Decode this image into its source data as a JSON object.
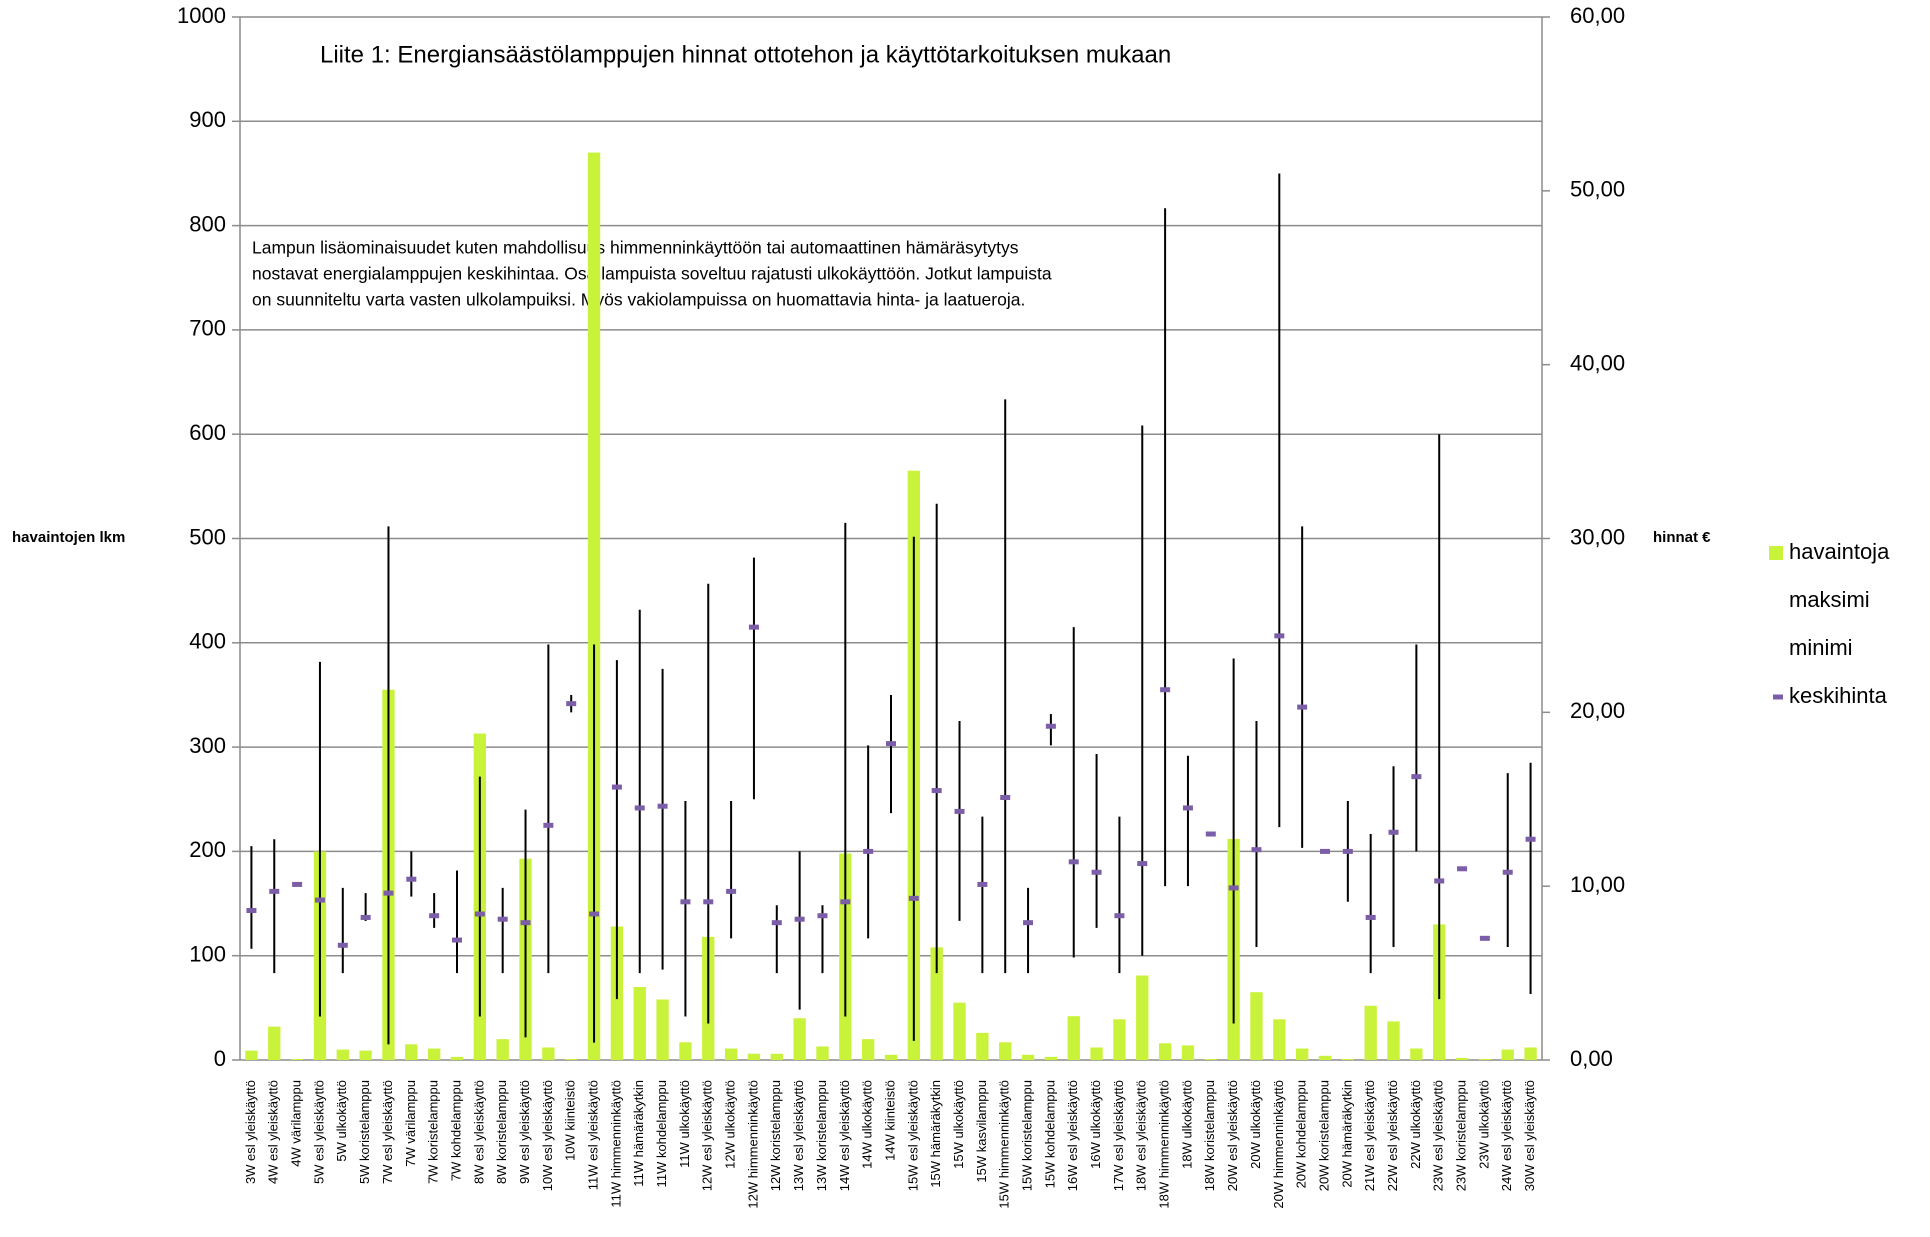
{
  "chart_data": {
    "type": "bar",
    "title": "Liite 1: Energiansäästölamppujen hinnat ottotehon ja käyttötarkoituksen mukaan",
    "annotation": [
      "Lampun lisäominaisuudet kuten mahdollisuus himmenninkäyttöön tai automaattinen hämäräsytytys",
      "nostavat energialamppujen keskihintaa. Osa lampuista soveltuu rajatusti ulkokäyttöön. Jotkut lampuista",
      "on suunniteltu varta vasten ulkolampuiksi. Myös vakiolampuissa on huomattavia hinta- ja laatueroja."
    ],
    "ylabel": "havaintojen lkm",
    "y2label": "hinnat €",
    "categories": [
      "3W esl yleiskäyttö",
      "4W esl yleiskäyttö",
      "4W värilamppu",
      "5W esl yleiskäyttö",
      "5W ulkokäyttö",
      "5W koristelamppu",
      "7W esl yleiskäyttö",
      "7W värilamppu",
      "7W koristelamppu",
      "7W kohdelamppu",
      "8W esl yleiskäyttö",
      "8W koristelamppu",
      "9W esl yleiskäyttö",
      "10W esl yleiskäyttö",
      "10W kiinteistö",
      "11W esl yleiskäyttö",
      "11W himmenninkäyttö",
      "11W hämäräkytkin",
      "11W kohdelamppu",
      "11W ulkokäyttö",
      "12W esl yleiskäyttö",
      "12W ulkokäyttö",
      "12W himmenninkäyttö",
      "12W koristelamppu",
      "13W esl yleiskäyttö",
      "13W koristelamppu",
      "14W esl yleiskäyttö",
      "14W ulkokäyttö",
      "14W kiinteistö",
      "15W esl yleiskäyttö",
      "15W hämäräkytkin",
      "15W ulkokäyttö",
      "15W kasvilamppu",
      "15W himmenninkäyttö",
      "15W koristelamppu",
      "15W kohdelamppu",
      "16W esl yleiskäyttö",
      "16W ulkokäyttö",
      "17W esl yleiskäyttö",
      "18W esl yleiskäyttö",
      "18W himmenninkäyttö",
      "18W ulkokäyttö",
      "18W koristelamppu",
      "20W esl yleiskäyttö",
      "20W ulkokäyttö",
      "20W himmenninkäyttö",
      "20W kohdelamppu",
      "20W koristelamppu",
      "20W hämäräkytkin",
      "21W esl yleiskäyttö",
      "22W esl yleiskäyttö",
      "22W ulkokäyttö",
      "23W esl yleiskäyttö",
      "23W koristelamppu",
      "23W ulkokäyttö",
      "24W esl yleiskäyttö",
      "30W esl yleiskäyttö"
    ],
    "series": [
      {
        "name": "havaintoja",
        "color": "#c9f23a",
        "values": [
          9,
          32,
          1,
          200,
          10,
          9,
          355,
          15,
          11,
          3,
          313,
          20,
          193,
          12,
          1,
          870,
          128,
          70,
          58,
          17,
          118,
          11,
          6,
          6,
          40,
          13,
          198,
          20,
          5,
          565,
          108,
          55,
          26,
          17,
          5,
          3,
          42,
          12,
          39,
          81,
          16,
          14,
          1,
          212,
          65,
          39,
          11,
          4,
          1,
          52,
          37,
          11,
          130,
          2,
          1,
          10,
          12
        ]
      },
      {
        "name": "maksimi",
        "axis": "y2",
        "color": "#000000",
        "values": [
          12.3,
          12.7,
          10.1,
          22.9,
          9.9,
          9.6,
          30.7,
          12.0,
          9.6,
          10.9,
          16.3,
          9.9,
          14.4,
          23.9,
          21.0,
          23.9,
          23.0,
          25.9,
          22.5,
          14.9,
          27.4,
          14.9,
          28.9,
          8.9,
          12.0,
          8.9,
          30.9,
          18.1,
          21.0,
          30.1,
          32.0,
          19.5,
          14.0,
          38.0,
          9.9,
          19.9,
          24.9,
          17.6,
          14.0,
          36.5,
          49.0,
          17.5,
          13.0,
          23.1,
          19.5,
          51.0,
          30.7,
          12.0,
          14.9,
          13.0,
          16.9,
          23.9,
          36.0,
          11.0,
          7.0,
          16.5,
          17.1
        ]
      },
      {
        "name": "minimi",
        "axis": "y2",
        "color": "#000000",
        "values": [
          6.4,
          5.0,
          10.1,
          2.5,
          5.0,
          8.0,
          0.9,
          9.4,
          7.6,
          5.0,
          2.5,
          5.0,
          1.3,
          5.0,
          20.0,
          1.0,
          3.5,
          5.0,
          5.2,
          2.5,
          2.1,
          7.0,
          15.0,
          5.0,
          2.9,
          5.0,
          2.5,
          7.0,
          14.2,
          1.1,
          5.0,
          8.0,
          5.0,
          5.0,
          5.0,
          18.1,
          5.9,
          7.6,
          5.0,
          6.0,
          10.0,
          10.0,
          13.0,
          2.1,
          6.5,
          13.4,
          12.2,
          12.0,
          9.1,
          5.0,
          6.5,
          12.0,
          3.5,
          11.0,
          7.0,
          6.5,
          3.8
        ]
      },
      {
        "name": "keskihinta",
        "axis": "y2",
        "color": "#7b5ea7",
        "values": [
          8.6,
          9.7,
          10.1,
          9.2,
          6.6,
          8.2,
          9.6,
          10.4,
          8.3,
          6.9,
          8.4,
          8.1,
          7.9,
          13.5,
          20.5,
          8.4,
          15.7,
          14.5,
          14.6,
          9.1,
          9.1,
          9.7,
          24.9,
          7.9,
          8.1,
          8.3,
          9.1,
          12.0,
          18.2,
          9.3,
          15.5,
          14.3,
          10.1,
          15.1,
          7.9,
          19.2,
          11.4,
          10.8,
          8.3,
          11.3,
          21.3,
          14.5,
          13.0,
          9.9,
          12.1,
          24.4,
          20.3,
          12.0,
          12.0,
          8.2,
          13.1,
          16.3,
          10.3,
          11.0,
          7.0,
          10.8,
          12.7
        ]
      }
    ],
    "ylim": [
      0,
      1000
    ],
    "yticks": [
      0,
      100,
      200,
      300,
      400,
      500,
      600,
      700,
      800,
      900,
      1000
    ],
    "y2lim": [
      0,
      60
    ],
    "y2ticks": [
      {
        "value": 0,
        "label": "0,00"
      },
      {
        "value": 10,
        "label": "10,00"
      },
      {
        "value": 20,
        "label": "20,00"
      },
      {
        "value": 30,
        "label": "30,00"
      },
      {
        "value": 40,
        "label": "40,00"
      },
      {
        "value": 50,
        "label": "50,00"
      },
      {
        "value": 60,
        "label": "60,00"
      }
    ],
    "grid": true,
    "legend": "right"
  }
}
